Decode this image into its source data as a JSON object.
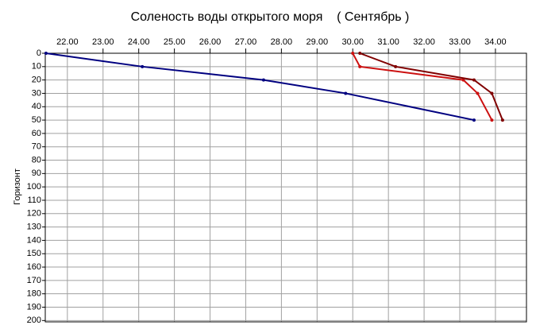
{
  "chart_data": {
    "type": "line",
    "title": "Соленость воды открытого моря    ( Сентябрь )",
    "y_label": "Горизонт",
    "series": [
      {
        "color": "#000080",
        "x": [
          21.4,
          24.1,
          27.5,
          29.8,
          33.4
        ],
        "values": [
          0,
          10,
          20,
          30,
          50
        ]
      },
      {
        "color": "#cc1010",
        "x": [
          30.0,
          30.2,
          33.1,
          33.5,
          33.9
        ],
        "values": [
          0,
          10,
          20,
          30,
          50
        ]
      },
      {
        "color": "#800000",
        "x": [
          30.2,
          31.2,
          33.4,
          33.9,
          34.2
        ],
        "values": [
          0,
          10,
          20,
          30,
          50
        ]
      }
    ],
    "xlim": [
      21.38,
      34.87
    ],
    "xticks": [
      {
        "value": 22,
        "label": "22.00"
      },
      {
        "value": 23,
        "label": "23.00"
      },
      {
        "value": 24,
        "label": "24.00"
      },
      {
        "value": 25,
        "label": "25.00"
      },
      {
        "value": 26,
        "label": "26.00"
      },
      {
        "value": 27,
        "label": "27.00"
      },
      {
        "value": 28,
        "label": "28.00"
      },
      {
        "value": 29,
        "label": "29.00"
      },
      {
        "value": 30,
        "label": "30.00"
      },
      {
        "value": 31,
        "label": "31.00"
      },
      {
        "value": 32,
        "label": "32.00"
      },
      {
        "value": 33,
        "label": "33.00"
      },
      {
        "value": 34,
        "label": "34.00"
      }
    ],
    "ylim": [
      0,
      201
    ],
    "yticks": [
      0,
      10,
      20,
      30,
      40,
      50,
      60,
      70,
      80,
      90,
      100,
      110,
      120,
      130,
      140,
      150,
      160,
      170,
      180,
      190,
      200
    ],
    "y_inverted": true,
    "grid": true
  }
}
